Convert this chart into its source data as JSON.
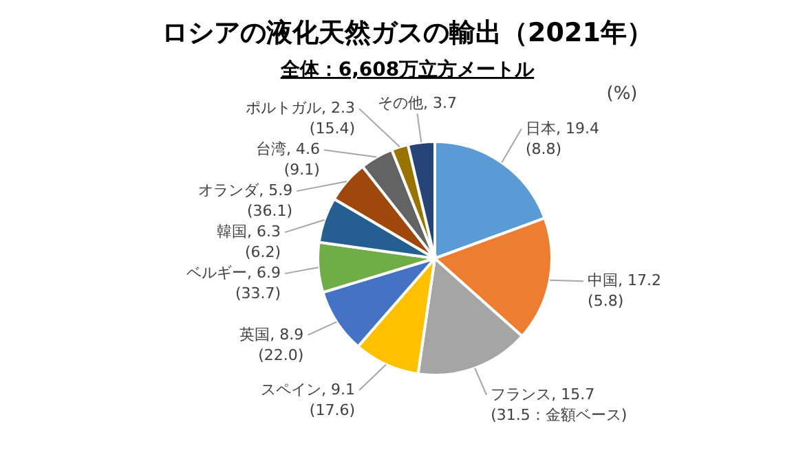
{
  "chart_data": {
    "type": "pie",
    "title": "ロシアの液化天然ガスの輸出（2021年）",
    "subtitle": "全体：6,608万立方メートル",
    "annotations": [
      "(%)"
    ],
    "categories": [
      "日本",
      "中国",
      "フランス",
      "スペイン",
      "英国",
      "ベルギー",
      "韓国",
      "オランダ",
      "台湾",
      "ポルトガル",
      "その他"
    ],
    "values": [
      19.4,
      17.2,
      15.7,
      9.1,
      8.9,
      6.9,
      6.3,
      5.9,
      4.6,
      2.3,
      3.7
    ],
    "value_labels": [
      "19.4\n(8.8)",
      "17.2\n(5.8)",
      "15.7\n(31.5：金額ベース)",
      "9.1\n(17.6)",
      "8.9\n(22.0)",
      "6.9\n(33.7)",
      "6.3\n(6.2)",
      "5.9\n(36.1)",
      "4.6\n(9.1)",
      "2.3\n(15.4)",
      "3.7"
    ],
    "colors": [
      "#5b9bd5",
      "#ed7d31",
      "#a5a5a5",
      "#ffc000",
      "#4472c4",
      "#70ad47",
      "#255e91",
      "#9e480e",
      "#636363",
      "#997300",
      "#264478"
    ]
  }
}
